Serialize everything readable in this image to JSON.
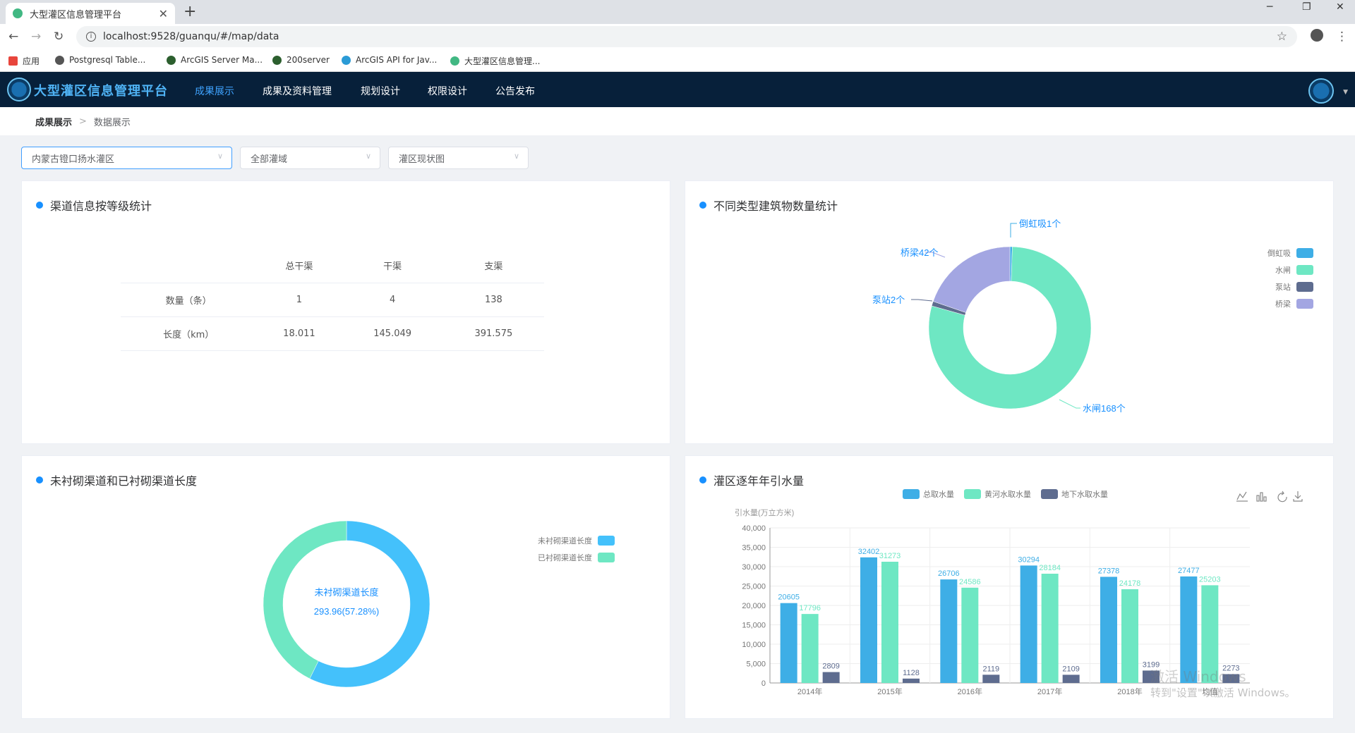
{
  "browser": {
    "tab_title": "大型灌区信息管理平台",
    "tab_close": "✕",
    "new_tab": "+",
    "url": "localhost:9528/guanqu/#/map/data",
    "bookmarks": [
      "应用",
      "Postgresql Table...",
      "ArcGIS Server Ma...",
      "200server",
      "ArcGIS API for Jav...",
      "大型灌区信息管理..."
    ]
  },
  "app": {
    "brand": "大型灌区信息管理平台",
    "menu": [
      "成果展示",
      "成果及资料管理",
      "规划设计",
      "权限设计",
      "公告发布"
    ],
    "active_menu": 0,
    "accent": "#3fa3ff",
    "header_bg": "#07203a"
  },
  "breadcrumb": {
    "items": [
      "成果展示",
      "数据展示"
    ],
    "separator": ">"
  },
  "filters": {
    "district": "内蒙古镫口扬水灌区",
    "domain": "全部灌域",
    "map_type": "灌区现状图"
  },
  "channel_stats": {
    "title": "渠道信息按等级统计",
    "columns": [
      "",
      "总干渠",
      "干渠",
      "支渠"
    ],
    "rows": [
      [
        "数量（条）",
        "1",
        "4",
        "138"
      ],
      [
        "长度（km）",
        "18.011",
        "145.049",
        "391.575"
      ]
    ]
  },
  "buildings": {
    "title": "不同类型建筑物数量统计",
    "labels": [
      "倒虹吸1个",
      "水闸168个",
      "泵站2个",
      "桥梁42个"
    ]
  },
  "lining": {
    "title": "未衬砌渠道和已衬砌渠道长度",
    "center_label": "未衬砌渠道长度",
    "center_value": "293.96(57.28%)"
  },
  "water": {
    "title": "灌区逐年年引水量",
    "toolbox": [
      "line-chart-icon",
      "bar-chart-icon",
      "refresh-icon",
      "download-icon"
    ]
  },
  "chart_data": [
    {
      "type": "pie",
      "categories": [
        "倒虹吸",
        "水闸",
        "泵站",
        "桥梁"
      ],
      "values": [
        1,
        168,
        2,
        42
      ],
      "colors": [
        "#3eaee6",
        "#6ee7c3",
        "#5e6c8f",
        "#a3a6e2"
      ],
      "legend": "right"
    },
    {
      "type": "pie",
      "categories": [
        "未衬砌渠道长度",
        "已衬砌渠道长度"
      ],
      "values": [
        293.96,
        219.18
      ],
      "colors": [
        "#44c1fb",
        "#6ee7c3"
      ],
      "legend": "right"
    },
    {
      "type": "bar",
      "categories": [
        "2014年",
        "2015年",
        "2016年",
        "2017年",
        "2018年",
        "均值"
      ],
      "series": [
        {
          "name": "总取水量",
          "values": [
            20605,
            32402,
            26706,
            30294,
            27378,
            27477
          ],
          "color": "#3eaee6"
        },
        {
          "name": "黄河水取水量",
          "values": [
            17796,
            31273,
            24586,
            28184,
            24178,
            25203
          ],
          "color": "#6ee7c3"
        },
        {
          "name": "地下水取水量",
          "values": [
            2809,
            1128,
            2119,
            2109,
            3199,
            2273
          ],
          "color": "#5e6c8f"
        }
      ],
      "ylabel": "引水量(万立方米)",
      "ylim": [
        0,
        40000
      ],
      "yticks": [
        "0",
        "5,000",
        "10,000",
        "15,000",
        "20,000",
        "25,000",
        "30,000",
        "35,000",
        "40,000"
      ],
      "grid": true,
      "legend": "top"
    }
  ],
  "os_watermark": {
    "line1": "激活 Windows",
    "line2": "转到\"设置\"以激活 Windows。"
  }
}
